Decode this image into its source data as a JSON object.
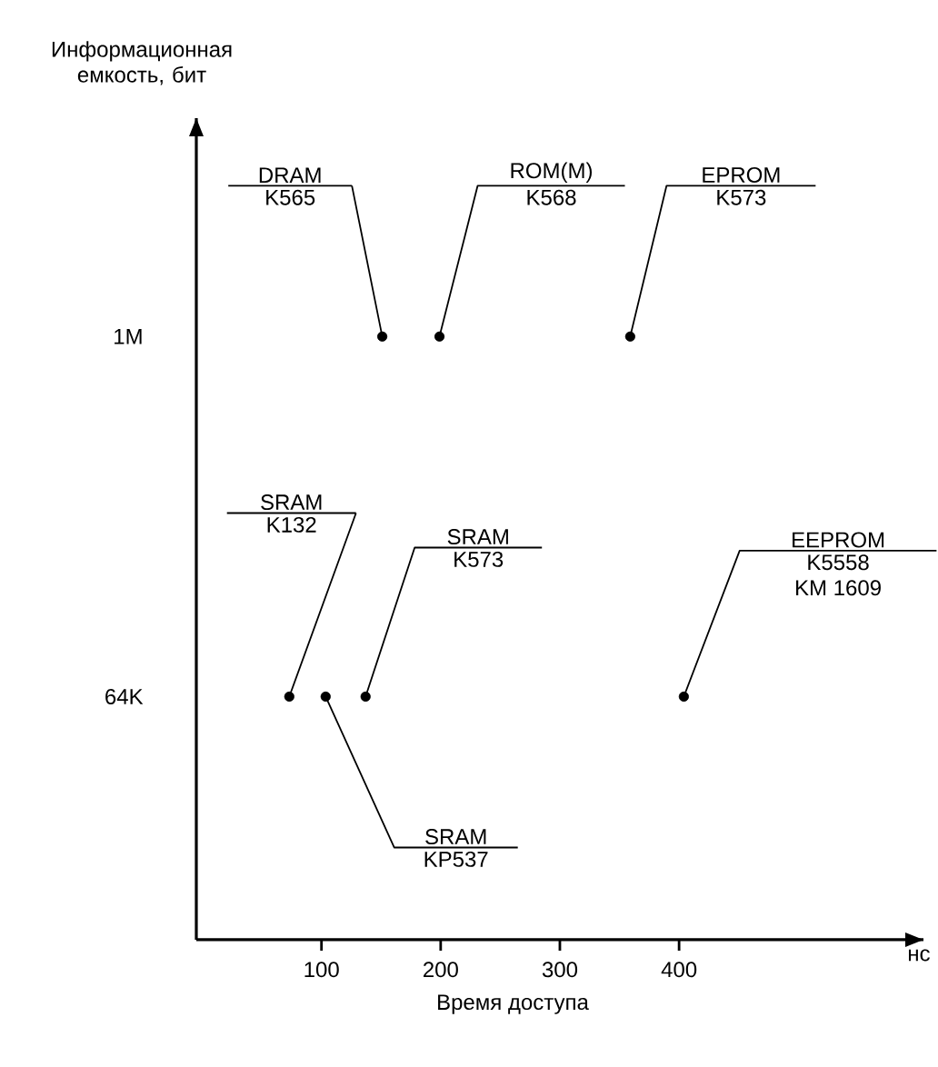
{
  "chart_data": {
    "type": "scatter",
    "xlabel": "Время доступа",
    "ylabel": "Информационная емкость, бит",
    "x": [
      151,
      199,
      359,
      73,
      137,
      103.5,
      404
    ],
    "values": [
      1000000,
      1000000,
      1000000,
      64000,
      64000,
      64000,
      64000
    ],
    "color": "#000000",
    "log": "y",
    "xlim": [
      -5,
      605
    ],
    "ylim": [
      10000,
      5300000
    ],
    "xticks": [
      100,
      200,
      300,
      400
    ],
    "yticks": [
      {
        "value": 64000,
        "label": "64K"
      },
      {
        "value": 1000000,
        "label": "1M"
      }
    ],
    "annotations": [
      "DRAM",
      "K565",
      "ROM(M)",
      "K568",
      "EPROM",
      "K573",
      "SRAM",
      "K132",
      "SRAM",
      "K573",
      "SRAM",
      "KP537",
      "EEPROM",
      "K5558",
      "KM 1609",
      "нс"
    ]
  }
}
